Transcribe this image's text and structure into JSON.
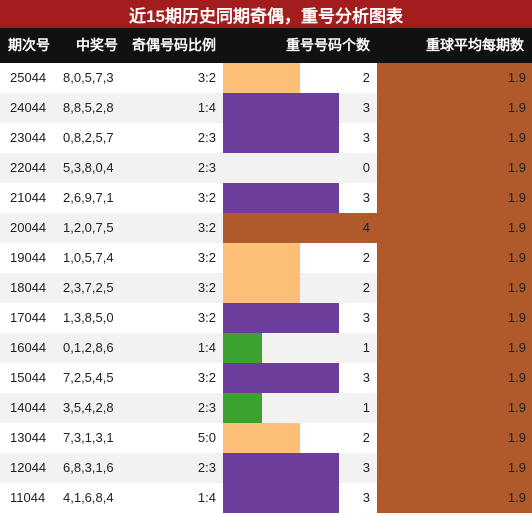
{
  "title": "近15期历史同期奇偶，重号分析图表",
  "columns": [
    "期次号",
    "中奖号",
    "奇偶号码比例",
    "重号号码个数",
    "重球平均每期数"
  ],
  "colors": {
    "title_bg": "#a31d1d",
    "header_bg": "#111111",
    "row_alt": "#f2f2f2",
    "count_1": "#3ca22f",
    "count_2": "#fdbf78",
    "count_3": "#6d3d9b",
    "count_4": "#b0592b",
    "avg_bg": "#b0592b"
  },
  "chart_data": {
    "type": "table",
    "rows": [
      {
        "period": "25044",
        "numbers": "8,0,5,7,3",
        "ratio": "3:2",
        "repeat": 2,
        "avg": "1.9"
      },
      {
        "period": "24044",
        "numbers": "8,8,5,2,8",
        "ratio": "1:4",
        "repeat": 3,
        "avg": "1.9"
      },
      {
        "period": "23044",
        "numbers": "0,8,2,5,7",
        "ratio": "2:3",
        "repeat": 3,
        "avg": "1.9"
      },
      {
        "period": "22044",
        "numbers": "5,3,8,0,4",
        "ratio": "2:3",
        "repeat": 0,
        "avg": "1.9"
      },
      {
        "period": "21044",
        "numbers": "2,6,9,7,1",
        "ratio": "3:2",
        "repeat": 3,
        "avg": "1.9"
      },
      {
        "period": "20044",
        "numbers": "1,2,0,7,5",
        "ratio": "3:2",
        "repeat": 4,
        "avg": "1.9"
      },
      {
        "period": "19044",
        "numbers": "1,0,5,7,4",
        "ratio": "3:2",
        "repeat": 2,
        "avg": "1.9"
      },
      {
        "period": "18044",
        "numbers": "2,3,7,2,5",
        "ratio": "3:2",
        "repeat": 2,
        "avg": "1.9"
      },
      {
        "period": "17044",
        "numbers": "1,3,8,5,0",
        "ratio": "3:2",
        "repeat": 3,
        "avg": "1.9"
      },
      {
        "period": "16044",
        "numbers": "0,1,2,8,6",
        "ratio": "1:4",
        "repeat": 1,
        "avg": "1.9"
      },
      {
        "period": "15044",
        "numbers": "7,2,5,4,5",
        "ratio": "3:2",
        "repeat": 3,
        "avg": "1.9"
      },
      {
        "period": "14044",
        "numbers": "3,5,4,2,8",
        "ratio": "2:3",
        "repeat": 1,
        "avg": "1.9"
      },
      {
        "period": "13044",
        "numbers": "7,3,1,3,1",
        "ratio": "5:0",
        "repeat": 2,
        "avg": "1.9"
      },
      {
        "period": "12044",
        "numbers": "6,8,3,1,6",
        "ratio": "2:3",
        "repeat": 3,
        "avg": "1.9"
      },
      {
        "period": "11044",
        "numbers": "4,1,6,8,4",
        "ratio": "1:4",
        "repeat": 3,
        "avg": "1.9"
      }
    ]
  }
}
